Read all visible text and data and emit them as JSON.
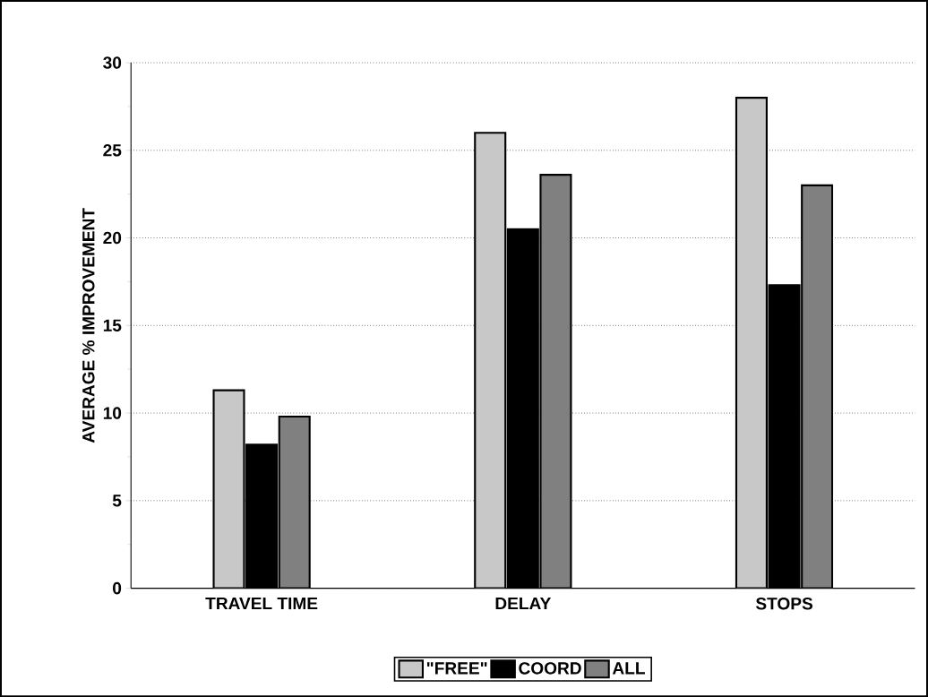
{
  "chart_data": {
    "type": "bar",
    "ylabel": "AVERAGE % IMPROVEMENT",
    "categories": [
      "TRAVEL TIME",
      "DELAY",
      "STOPS"
    ],
    "series": [
      {
        "name": "\"FREE\"",
        "color": "#c8c8c8",
        "values": [
          11.3,
          26.0,
          28.0
        ]
      },
      {
        "name": "COORD",
        "color": "#000000",
        "values": [
          8.2,
          20.5,
          17.3
        ]
      },
      {
        "name": "ALL",
        "color": "#808080",
        "values": [
          9.8,
          23.6,
          23.0
        ]
      }
    ],
    "ylim": [
      0,
      30
    ],
    "yticks": [
      0,
      5,
      10,
      15,
      20,
      25,
      30
    ],
    "grid": "y",
    "legend": "bottom"
  }
}
